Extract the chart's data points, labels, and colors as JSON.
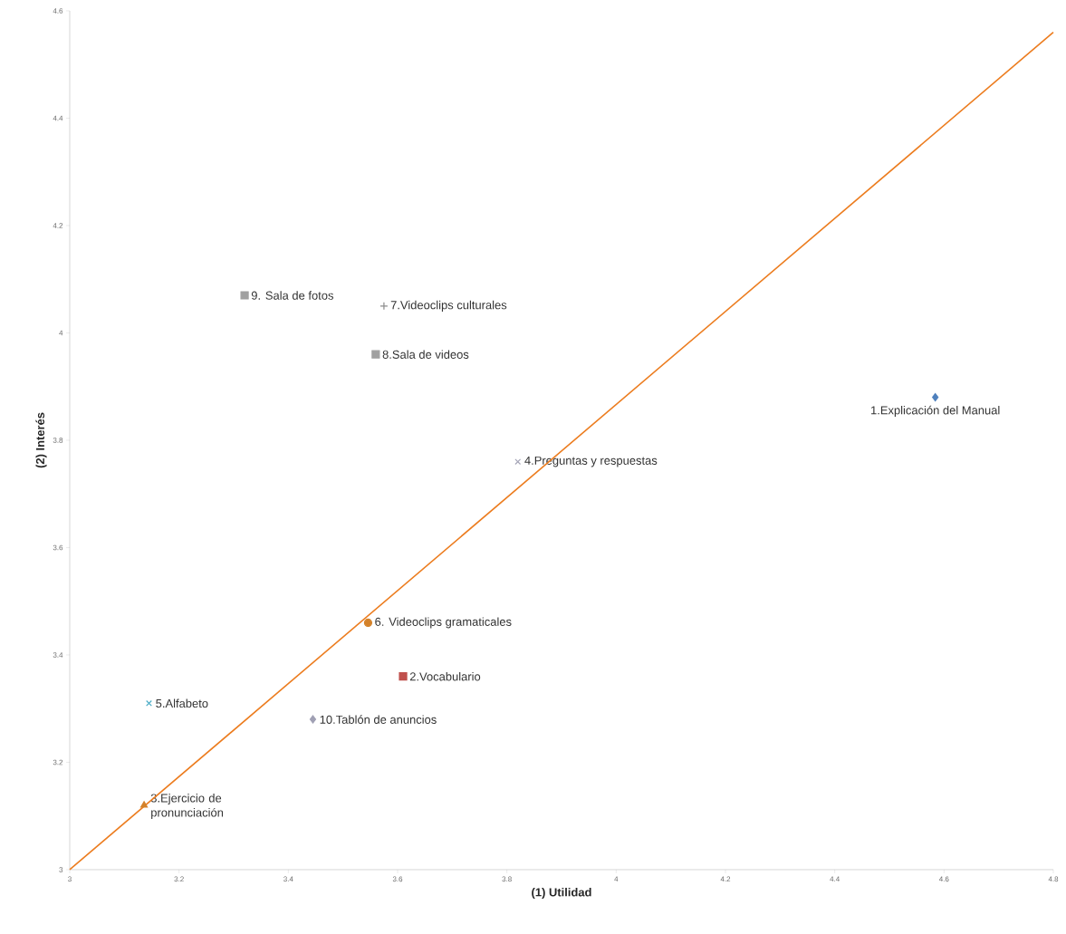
{
  "chart_data": {
    "type": "scatter",
    "xlabel": "(1) Utilidad",
    "ylabel": "(2) Interés",
    "xlim": [
      3,
      4.8
    ],
    "xticks": [
      3,
      3.2,
      3.4,
      3.6,
      3.8,
      4,
      4.2,
      4.4,
      4.6,
      4.8
    ],
    "ylim": [
      3,
      4.6
    ],
    "yticks": [
      3,
      3.2,
      3.4,
      3.6,
      3.8,
      4,
      4.2,
      4.4,
      4.6
    ],
    "grid": false,
    "legend": false,
    "series": [
      {
        "name": "1.Explicación del Manual",
        "color": "#4f81bd",
        "marker": "diamond",
        "x": [
          4.584
        ],
        "values": [
          3.88
        ]
      },
      {
        "name": "2.Vocabulario",
        "color": "#c0504d",
        "marker": "square",
        "x": [
          3.61
        ],
        "values": [
          3.36
        ]
      },
      {
        "name": "3.Ejercicio de pronunciación",
        "color": "#d4822a",
        "marker": "triangle",
        "x": [
          3.136
        ],
        "values": [
          3.12
        ]
      },
      {
        "name": "4.Preguntas y respuestas",
        "color": "#a6a6b8",
        "marker": "cross",
        "x": [
          3.82
        ],
        "values": [
          3.76
        ]
      },
      {
        "name": "5.Alfabeto",
        "color": "#4bacc6",
        "marker": "cross",
        "x": [
          3.145
        ],
        "values": [
          3.31
        ]
      },
      {
        "name": "6. Videoclips gramaticales",
        "color": "#d4822a",
        "marker": "circle",
        "x": [
          3.546
        ],
        "values": [
          3.46
        ]
      },
      {
        "name": "7.Videoclips culturales",
        "color": "#8c8c8c",
        "marker": "plus",
        "x": [
          3.575
        ],
        "values": [
          4.05
        ]
      },
      {
        "name": "8.Sala de videos",
        "color": "#a0a0a0",
        "marker": "square",
        "x": [
          3.56
        ],
        "values": [
          3.96
        ]
      },
      {
        "name": "9. Sala de fotos",
        "color": "#a0a0a0",
        "marker": "square",
        "x": [
          3.32
        ],
        "values": [
          4.07
        ]
      },
      {
        "name": "10.Tablón de anuncios",
        "color": "#a0a0b4",
        "marker": "diamond",
        "x": [
          3.445
        ],
        "values": [
          3.28
        ]
      },
      {
        "type": "line",
        "color": "#ec7c1e",
        "marker": "none",
        "line_style": "solid",
        "x": [
          3,
          4.8
        ],
        "values": [
          3,
          4.56
        ]
      }
    ]
  }
}
